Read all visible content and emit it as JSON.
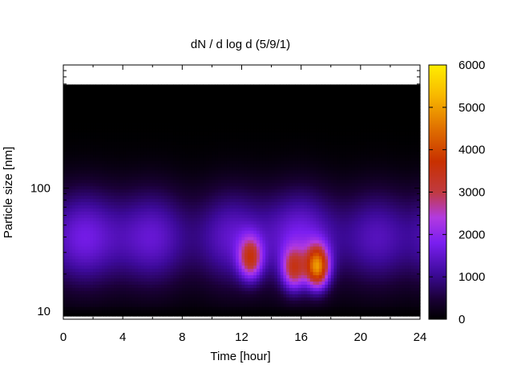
{
  "chart_data": {
    "type": "heatmap",
    "title": "dN / d log d (5/9/1)",
    "xlabel": "Time [hour]",
    "ylabel": "Particle size [nm]",
    "xlim": [
      0,
      24
    ],
    "ylim_nm": [
      8.6,
      1000
    ],
    "y_scale": "log",
    "x_ticks": [
      "0",
      "4",
      "8",
      "12",
      "16",
      "20",
      "24"
    ],
    "y_ticks": [
      "10",
      "100"
    ],
    "colorbar": {
      "range": [
        0,
        6000
      ],
      "ticks": [
        "0",
        "1000",
        "2000",
        "3000",
        "4000",
        "5000",
        "6000"
      ],
      "colormap": "black-purple-violet-red-orange-yellow"
    },
    "features": [
      {
        "label": "growth event",
        "time_h": 12.6,
        "size_nm": 27,
        "value": 4200
      },
      {
        "label": "growth event",
        "time_h": 15.5,
        "size_nm": 22,
        "value": 4000
      },
      {
        "label": "growth event",
        "time_h": 17.1,
        "size_nm": 23,
        "value": 5600
      },
      {
        "label": "background band",
        "time_h": 12,
        "size_nm": 40,
        "value": 1700
      }
    ]
  }
}
